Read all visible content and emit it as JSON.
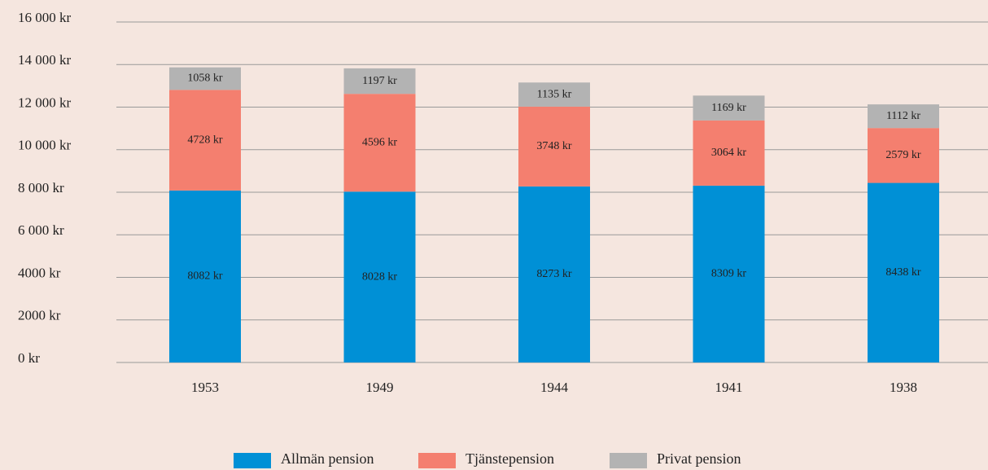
{
  "chart_data": {
    "type": "stacked_bar",
    "categories": [
      "1953",
      "1949",
      "1944",
      "1941",
      "1938"
    ],
    "series": [
      {
        "name": "Allmän pension",
        "color": "#0090d6",
        "values": [
          8082,
          8028,
          8273,
          8309,
          8438
        ],
        "value_labels": [
          "8082 kr",
          "8028 kr",
          "8273 kr",
          "8309 kr",
          "8438 kr"
        ]
      },
      {
        "name": "Tjänstepension",
        "color": "#f47f6f",
        "values": [
          4728,
          4596,
          3748,
          3064,
          2579
        ],
        "value_labels": [
          "4728 kr",
          "4596 kr",
          "3748 kr",
          "3064 kr",
          "2579 kr"
        ]
      },
      {
        "name": "Privat pension",
        "color": "#b3b3b3",
        "values": [
          1058,
          1197,
          1135,
          1169,
          1112
        ],
        "value_labels": [
          "1058 kr",
          "1197 kr",
          "1135 kr",
          "1169 kr",
          "1112 kr"
        ]
      }
    ],
    "ylim": [
      0,
      16000
    ],
    "yticks": [
      {
        "value": 0,
        "label": "0 kr"
      },
      {
        "value": 2000,
        "label": "2000 kr"
      },
      {
        "value": 4000,
        "label": "4000 kr"
      },
      {
        "value": 6000,
        "label": "6 000 kr"
      },
      {
        "value": 8000,
        "label": "8 000 kr"
      },
      {
        "value": 10000,
        "label": "10 000 kr"
      },
      {
        "value": 12000,
        "label": "12 000 kr"
      },
      {
        "value": 14000,
        "label": "14 000 kr"
      },
      {
        "value": 16000,
        "label": "16 000 kr"
      }
    ],
    "grid": true,
    "legend": "bottom"
  }
}
